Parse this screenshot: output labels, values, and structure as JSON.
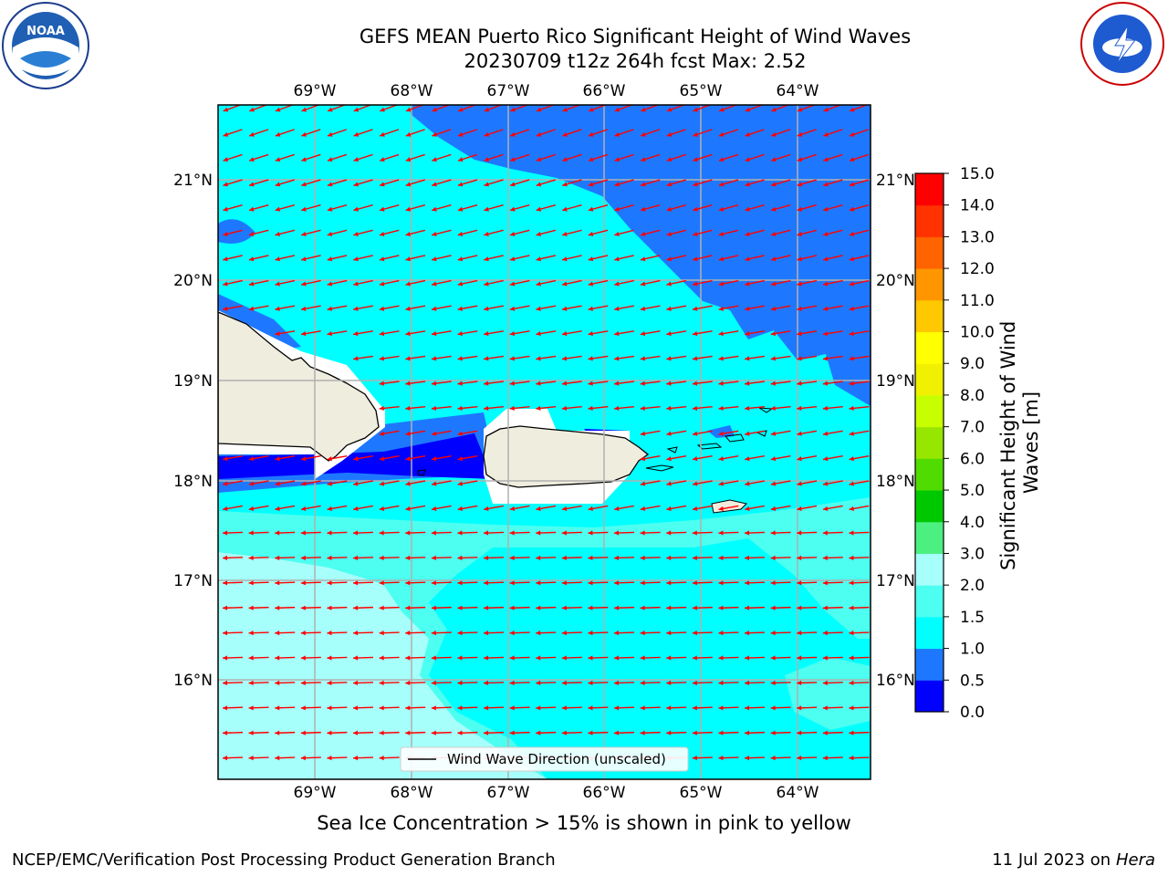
{
  "title": {
    "line1": "GEFS MEAN Puerto Rico Significant Height of Wind Waves",
    "line2": "20230709 t12z 264h fcst   Max: 2.52"
  },
  "logos": {
    "left": {
      "icon": "noaa-logo",
      "text": "NOAA",
      "ring_text": "NATIONAL OCEANIC AND ATMOSPHERIC ADMINISTRATION · U.S. DEPARTMENT OF COMMERCE"
    },
    "right": {
      "icon": "nws-logo",
      "ring_text": "NATIONAL WEATHER SERVICE"
    }
  },
  "map": {
    "lon_labels": [
      "69°W",
      "68°W",
      "67°W",
      "66°W",
      "65°W",
      "64°W"
    ],
    "lat_labels": [
      "21°N",
      "20°N",
      "19°N",
      "18°N",
      "17°N",
      "16°N"
    ],
    "legend_label": "Wind Wave Direction (unscaled)",
    "arrow_color": "#ff0000",
    "land_color": "#efedde"
  },
  "colorbar": {
    "ticks": [
      "0.0",
      "0.5",
      "1.0",
      "1.5",
      "2.0",
      "3.0",
      "4.0",
      "5.0",
      "6.0",
      "7.0",
      "8.0",
      "9.0",
      "10.0",
      "11.0",
      "12.0",
      "13.0",
      "14.0",
      "15.0"
    ],
    "colors": [
      "#0000ff",
      "#1e78ff",
      "#00ffff",
      "#4cfff0",
      "#a6fffb",
      "#4cf080",
      "#00c800",
      "#50dc00",
      "#96e600",
      "#c8ff00",
      "#f0f000",
      "#ffff00",
      "#ffc800",
      "#ff9600",
      "#ff6400",
      "#ff3200",
      "#ff0000"
    ],
    "label": "Significant Height of Wind Waves [m]"
  },
  "note": "Sea Ice Concentration > 15% is shown in pink to yellow",
  "footer": {
    "left": "NCEP/EMC/Verification Post Processing Product Generation Branch",
    "date": "11 Jul 2023 on ",
    "host": "Hera"
  }
}
